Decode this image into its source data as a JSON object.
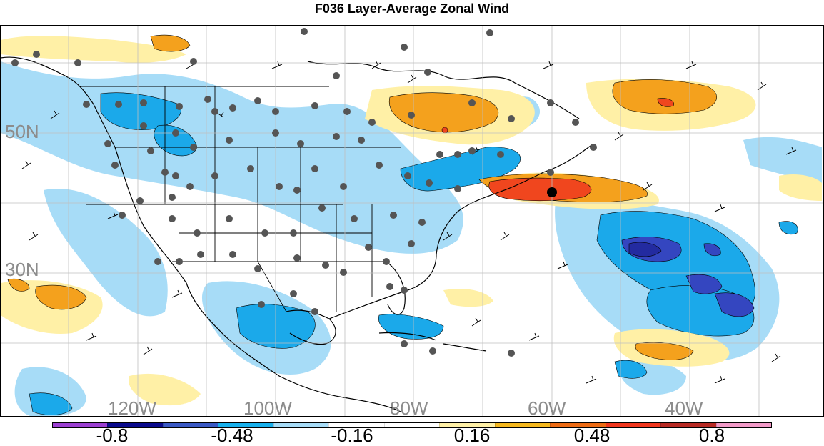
{
  "title": "F036 Layer-Average Zonal Wind",
  "map": {
    "lat_labels": [
      "50N",
      "30N"
    ],
    "lon_labels": [
      "120W",
      "100W",
      "80W",
      "60W",
      "40W"
    ],
    "label_color": "#8c8c8c",
    "field_type": "shaded contour anomaly with wind barbs and station dots"
  },
  "colorbar": {
    "colors": [
      "#9b3fd1",
      "#0a0a8c",
      "#3a59c4",
      "#18b0ec",
      "#a7dcf7",
      "#ffffff",
      "#ffffff",
      "#fff0a6",
      "#f4b71d",
      "#ed6b14",
      "#f0361e",
      "#b82a24",
      "#f29ac8"
    ],
    "tick_labels": [
      "-0.8",
      "-0.48",
      "-0.16",
      "0.16",
      "0.48",
      "0.8"
    ]
  },
  "legend_palette": {
    "dark_blue": "#2a2ab8",
    "medium_blue": "#1b9ee6",
    "light_blue": "#a7dcf7",
    "light_yellow": "#fff0a6",
    "orange": "#f4a11d",
    "red_orange": "#f0461e"
  }
}
